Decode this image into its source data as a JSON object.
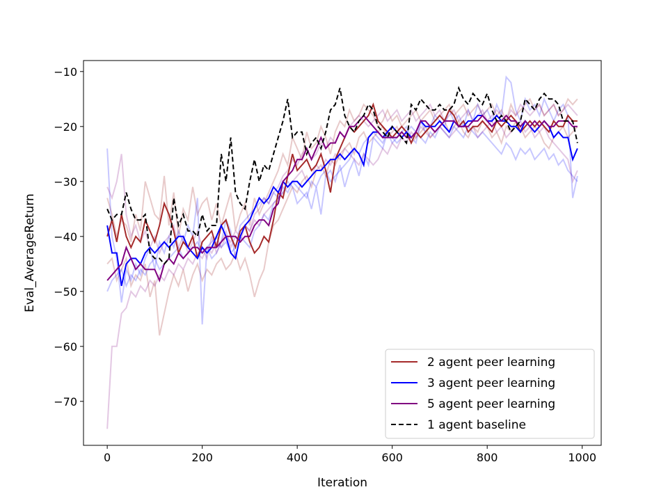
{
  "chart_data": {
    "type": "line",
    "title": "",
    "xlabel": "Iteration",
    "ylabel": "Eval_AverageReturn",
    "xlim": [
      -50,
      1040
    ],
    "ylim": [
      -78,
      -8
    ],
    "xticks": [
      0,
      200,
      400,
      600,
      800,
      1000
    ],
    "yticks": [
      -10,
      -20,
      -30,
      -40,
      -50,
      -60,
      -70
    ],
    "tick_labels": {
      "x": [
        "0",
        "200",
        "400",
        "600",
        "800",
        "1000"
      ],
      "y": [
        "−10",
        "−20",
        "−30",
        "−40",
        "−50",
        "−60",
        "−70"
      ]
    },
    "grid": false,
    "legend_position": "lower-right",
    "x": [
      0,
      10,
      20,
      30,
      40,
      50,
      60,
      70,
      80,
      90,
      100,
      110,
      120,
      130,
      140,
      150,
      160,
      170,
      180,
      190,
      200,
      210,
      220,
      230,
      240,
      250,
      260,
      270,
      280,
      290,
      300,
      310,
      320,
      330,
      340,
      350,
      360,
      370,
      380,
      390,
      400,
      410,
      420,
      430,
      440,
      450,
      460,
      470,
      480,
      490,
      500,
      510,
      520,
      530,
      540,
      550,
      560,
      570,
      580,
      590,
      600,
      610,
      620,
      630,
      640,
      650,
      660,
      670,
      680,
      690,
      700,
      710,
      720,
      730,
      740,
      750,
      760,
      770,
      780,
      790,
      800,
      810,
      820,
      830,
      840,
      850,
      860,
      870,
      880,
      890,
      900,
      910,
      920,
      930,
      940,
      950,
      960,
      970,
      980,
      990
    ],
    "series": [
      {
        "name": "2 agent peer learning",
        "color": "#a52a2a",
        "style": "solid",
        "values": [
          -40,
          -37,
          -41,
          -36,
          -40,
          -42,
          -40,
          -41,
          -37,
          -39,
          -41,
          -38,
          -34,
          -36,
          -39,
          -43,
          -41,
          -42,
          -40,
          -44,
          -41,
          -40,
          -39,
          -42,
          -38,
          -37,
          -40,
          -42,
          -39,
          -38,
          -41,
          -43,
          -42,
          -40,
          -41,
          -37,
          -32,
          -33,
          -29,
          -25,
          -28,
          -27,
          -26,
          -28,
          -27,
          -25,
          -28,
          -32,
          -26,
          -24,
          -22,
          -20,
          -21,
          -20,
          -19,
          -18,
          -16,
          -19,
          -20,
          -21,
          -22,
          -21,
          -20,
          -21,
          -23,
          -21,
          -22,
          -21,
          -20,
          -19,
          -18,
          -19,
          -17,
          -18,
          -20,
          -19,
          -21,
          -20,
          -20,
          -19,
          -20,
          -21,
          -19,
          -20,
          -19,
          -18,
          -19,
          -21,
          -20,
          -19,
          -20,
          -19,
          -20,
          -21,
          -19,
          -20,
          -20,
          -18,
          -19,
          -19
        ]
      },
      {
        "name": "3 agent peer learning",
        "color": "#0000ff",
        "style": "solid",
        "values": [
          -38,
          -43,
          -43,
          -49,
          -45,
          -44,
          -44,
          -45,
          -43,
          -42,
          -43,
          -42,
          -41,
          -42,
          -41,
          -40,
          -40,
          -42,
          -43,
          -44,
          -42,
          -43,
          -42,
          -40,
          -38,
          -40,
          -43,
          -44,
          -40,
          -38,
          -37,
          -35,
          -33,
          -34,
          -33,
          -31,
          -32,
          -30,
          -31,
          -30,
          -30,
          -31,
          -30,
          -29,
          -28,
          -28,
          -27,
          -26,
          -26,
          -25,
          -26,
          -25,
          -24,
          -25,
          -27,
          -22,
          -21,
          -21,
          -22,
          -21,
          -20,
          -21,
          -22,
          -21,
          -22,
          -21,
          -19,
          -20,
          -20,
          -20,
          -19,
          -20,
          -21,
          -19,
          -20,
          -20,
          -19,
          -19,
          -18,
          -18,
          -19,
          -19,
          -18,
          -19,
          -19,
          -20,
          -20,
          -21,
          -19,
          -20,
          -21,
          -20,
          -19,
          -20,
          -22,
          -21,
          -22,
          -22,
          -26,
          -24
        ]
      },
      {
        "name": "5 agent peer learning",
        "color": "#800080",
        "style": "solid",
        "values": [
          -48,
          -47,
          -46,
          -45,
          -42,
          -44,
          -46,
          -45,
          -46,
          -46,
          -46,
          -48,
          -45,
          -44,
          -45,
          -43,
          -44,
          -43,
          -42,
          -42,
          -43,
          -42,
          -42,
          -42,
          -41,
          -40,
          -40,
          -40,
          -41,
          -40,
          -40,
          -38,
          -37,
          -37,
          -38,
          -35,
          -34,
          -30,
          -29,
          -28,
          -26,
          -26,
          -24,
          -26,
          -24,
          -22,
          -24,
          -23,
          -23,
          -21,
          -22,
          -20,
          -20,
          -19,
          -18,
          -19,
          -20,
          -21,
          -22,
          -22,
          -22,
          -22,
          -21,
          -22,
          -22,
          -21,
          -19,
          -19,
          -20,
          -21,
          -20,
          -19,
          -19,
          -19,
          -20,
          -20,
          -20,
          -19,
          -19,
          -18,
          -19,
          -20,
          -19,
          -19,
          -18,
          -19,
          -19,
          -20,
          -19,
          -20,
          -19,
          -20,
          -19,
          -20,
          -20,
          -19,
          -19,
          -19,
          -20,
          -20
        ]
      },
      {
        "name": "1 agent baseline",
        "color": "#000000",
        "style": "dashed",
        "values": [
          -35,
          -37,
          -36,
          -36,
          -32,
          -35,
          -37,
          -37,
          -36,
          -43,
          -44,
          -44,
          -45,
          -44,
          -33,
          -38,
          -36,
          -39,
          -39,
          -40,
          -36,
          -39,
          -38,
          -38,
          -25,
          -30,
          -22,
          -32,
          -34,
          -35,
          -30,
          -26,
          -30,
          -27,
          -28,
          -25,
          -22,
          -19,
          -15,
          -22,
          -21,
          -21,
          -25,
          -23,
          -22,
          -24,
          -21,
          -17,
          -16,
          -13,
          -18,
          -20,
          -21,
          -19,
          -18,
          -16,
          -17,
          -20,
          -21,
          -22,
          -20,
          -21,
          -22,
          -23,
          -16,
          -17,
          -15,
          -16,
          -17,
          -17,
          -16,
          -17,
          -17,
          -16,
          -13,
          -15,
          -16,
          -14,
          -15,
          -16,
          -14,
          -17,
          -19,
          -18,
          -19,
          -21,
          -20,
          -19,
          -15,
          -16,
          -17,
          -15,
          -14,
          -15,
          -15,
          -16,
          -19,
          -19,
          -19,
          -23
        ]
      }
    ],
    "faint_series": [
      {
        "color": "#a52a2a",
        "opacity": 0.25,
        "values": [
          -33,
          -36,
          -40,
          -37,
          -38,
          -41,
          -36,
          -39,
          -30,
          -33,
          -36,
          -37,
          -29,
          -38,
          -32,
          -40,
          -35,
          -37,
          -31,
          -36,
          -34,
          -33,
          -37,
          -34,
          -38,
          -35,
          -32,
          -39,
          -36,
          -34,
          -38,
          -33,
          -36,
          -34,
          -32,
          -30,
          -28,
          -25,
          -27,
          -22,
          -24,
          -26,
          -21,
          -24,
          -23,
          -20,
          -22,
          -25,
          -21,
          -19,
          -20,
          -17,
          -19,
          -18,
          -16,
          -17,
          -18,
          -20,
          -19,
          -17,
          -19,
          -18,
          -20,
          -19,
          -18,
          -17,
          -19,
          -18,
          -17,
          -19,
          -18,
          -17,
          -16,
          -18,
          -17,
          -16,
          -18,
          -17,
          -16,
          -18,
          -17,
          -16,
          -18,
          -17,
          -19,
          -16,
          -18,
          -17,
          -16,
          -15,
          -17,
          -16,
          -18,
          -17,
          -16,
          -18,
          -17,
          -15,
          -16,
          -15
        ]
      },
      {
        "color": "#a52a2a",
        "opacity": 0.25,
        "values": [
          -45,
          -44,
          -48,
          -46,
          -44,
          -49,
          -47,
          -48,
          -45,
          -51,
          -48,
          -58,
          -54,
          -50,
          -47,
          -49,
          -46,
          -50,
          -47,
          -45,
          -48,
          -46,
          -47,
          -45,
          -44,
          -46,
          -45,
          -43,
          -46,
          -44,
          -47,
          -51,
          -48,
          -46,
          -41,
          -38,
          -37,
          -35,
          -33,
          -31,
          -32,
          -30,
          -29,
          -31,
          -28,
          -27,
          -29,
          -26,
          -27,
          -25,
          -24,
          -23,
          -25,
          -22,
          -21,
          -23,
          -22,
          -21,
          -20,
          -22,
          -21,
          -20,
          -22,
          -21,
          -23,
          -22,
          -21,
          -20,
          -22,
          -21,
          -20,
          -19,
          -21,
          -20,
          -19,
          -21,
          -22,
          -20,
          -21,
          -19,
          -20,
          -22,
          -21,
          -23,
          -20,
          -21,
          -19,
          -20,
          -22,
          -21,
          -20,
          -21,
          -23,
          -24,
          -22,
          -21,
          -20,
          -22,
          -21,
          -20
        ]
      },
      {
        "color": "#0000ff",
        "opacity": 0.22,
        "values": [
          -24,
          -40,
          -44,
          -52,
          -46,
          -48,
          -45,
          -47,
          -44,
          -42,
          -46,
          -41,
          -43,
          -40,
          -42,
          -39,
          -41,
          -38,
          -40,
          -33,
          -56,
          -42,
          -44,
          -43,
          -41,
          -37,
          -39,
          -44,
          -40,
          -41,
          -42,
          -39,
          -38,
          -36,
          -37,
          -34,
          -33,
          -32,
          -30,
          -31,
          -34,
          -33,
          -32,
          -35,
          -31,
          -36,
          -29,
          -28,
          -30,
          -27,
          -31,
          -28,
          -26,
          -29,
          -25,
          -27,
          -22,
          -23,
          -24,
          -21,
          -23,
          -22,
          -21,
          -20,
          -22,
          -23,
          -19,
          -21,
          -20,
          -18,
          -19,
          -20,
          -17,
          -19,
          -18,
          -20,
          -17,
          -19,
          -16,
          -18,
          -17,
          -19,
          -16,
          -18,
          -11,
          -12,
          -17,
          -19,
          -15,
          -17,
          -16,
          -18,
          -15,
          -17,
          -19,
          -17,
          -16,
          -18,
          -33,
          -29
        ]
      },
      {
        "color": "#0000ff",
        "opacity": 0.22,
        "values": [
          -50,
          -48,
          -47,
          -46,
          -49,
          -47,
          -48,
          -46,
          -47,
          -45,
          -44,
          -46,
          -45,
          -44,
          -43,
          -42,
          -44,
          -43,
          -42,
          -41,
          -43,
          -42,
          -41,
          -40,
          -42,
          -41,
          -43,
          -42,
          -38,
          -37,
          -36,
          -35,
          -34,
          -33,
          -34,
          -32,
          -33,
          -31,
          -32,
          -30,
          -31,
          -32,
          -33,
          -30,
          -31,
          -29,
          -28,
          -30,
          -29,
          -28,
          -27,
          -26,
          -24,
          -25,
          -23,
          -22,
          -21,
          -22,
          -23,
          -21,
          -22,
          -23,
          -22,
          -21,
          -20,
          -21,
          -22,
          -23,
          -21,
          -22,
          -20,
          -21,
          -22,
          -20,
          -21,
          -22,
          -20,
          -21,
          -22,
          -21,
          -22,
          -23,
          -24,
          -25,
          -23,
          -24,
          -26,
          -24,
          -25,
          -24,
          -26,
          -25,
          -24,
          -26,
          -25,
          -27,
          -26,
          -28,
          -29,
          -30
        ]
      },
      {
        "color": "#800080",
        "opacity": 0.22,
        "values": [
          -75,
          -60,
          -60,
          -54,
          -53,
          -50,
          -51,
          -49,
          -50,
          -48,
          -49,
          -47,
          -48,
          -46,
          -47,
          -45,
          -46,
          -44,
          -45,
          -43,
          -44,
          -42,
          -43,
          -41,
          -42,
          -40,
          -41,
          -39,
          -40,
          -38,
          -39,
          -37,
          -38,
          -36,
          -35,
          -34,
          -33,
          -32,
          -31,
          -30,
          -29,
          -28,
          -30,
          -29,
          -27,
          -28,
          -26,
          -27,
          -25,
          -26,
          -24,
          -25,
          -26,
          -27,
          -25,
          -26,
          -27,
          -26,
          -24,
          -25,
          -23,
          -24,
          -22,
          -23,
          -21,
          -22,
          -20,
          -21,
          -22,
          -21,
          -20,
          -21,
          -22,
          -21,
          -20,
          -19,
          -21,
          -20,
          -22,
          -21,
          -20,
          -19,
          -21,
          -20,
          -22,
          -21,
          -20,
          -19,
          -21,
          -20,
          -22,
          -21,
          -20,
          -22,
          -23,
          -24,
          -25,
          -26,
          -30,
          -28
        ]
      },
      {
        "color": "#800080",
        "opacity": 0.22,
        "values": [
          -31,
          -33,
          -30,
          -25,
          -36,
          -40,
          -38,
          -41,
          -39,
          -42,
          -40,
          -43,
          -41,
          -40,
          -38,
          -42,
          -40,
          -43,
          -41,
          -39,
          -42,
          -44,
          -40,
          -43,
          -41,
          -39,
          -42,
          -40,
          -41,
          -38,
          -39,
          -36,
          -35,
          -33,
          -34,
          -32,
          -31,
          -29,
          -28,
          -26,
          -27,
          -25,
          -24,
          -26,
          -25,
          -23,
          -24,
          -22,
          -23,
          -21,
          -22,
          -20,
          -19,
          -18,
          -19,
          -20,
          -19,
          -18,
          -17,
          -19,
          -18,
          -17,
          -19,
          -18,
          -17,
          -19,
          -18,
          -17,
          -16,
          -18,
          -17,
          -19,
          -18,
          -17,
          -19,
          -18,
          -17,
          -19,
          -18,
          -17,
          -19,
          -18,
          -17,
          -18,
          -19,
          -17,
          -18,
          -16,
          -17,
          -18,
          -17,
          -16,
          -18,
          -17,
          -16,
          -18,
          -17,
          -16,
          -17,
          -18
        ]
      }
    ]
  }
}
